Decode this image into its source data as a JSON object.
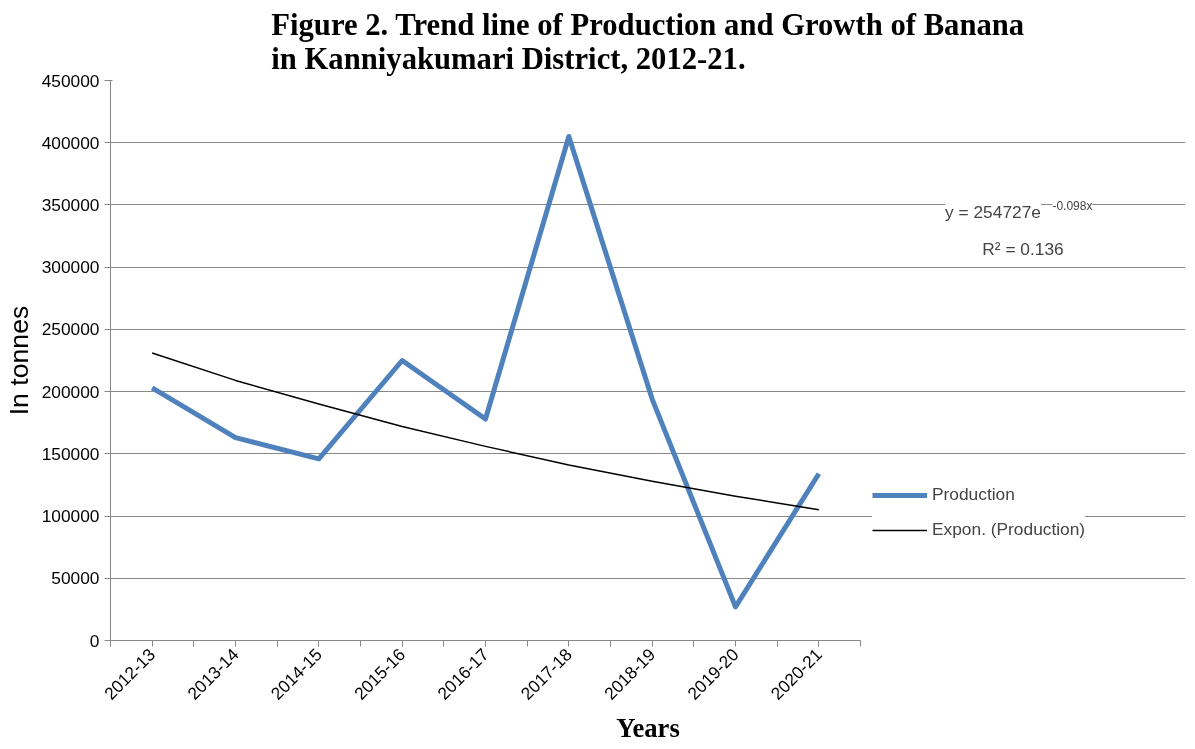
{
  "chart_data": {
    "type": "line",
    "title": "Figure 2. Trend line of Production and Growth of Banana\nin Kanniyakumari District, 2012-21.",
    "xlabel": "Years",
    "ylabel": "In tonnes",
    "categories": [
      "2012-13",
      "2013-14",
      "2014-15",
      "2015-16",
      "2016-17",
      "2017-18",
      "2018-19",
      "2019-20",
      "2020-21"
    ],
    "series": [
      {
        "name": "Production",
        "color": "#4f81bd",
        "values": [
          203000,
          163000,
          146000,
          225000,
          178000,
          405000,
          194000,
          27000,
          134000
        ]
      },
      {
        "name": "Expon. (Production)",
        "color": "#000000",
        "values": [
          231000,
          209000,
          190000,
          172000,
          156000,
          141000,
          128000,
          116000,
          105000
        ]
      }
    ],
    "ylim": [
      0,
      450000
    ],
    "yticks": [
      0,
      50000,
      100000,
      150000,
      200000,
      250000,
      300000,
      350000,
      400000,
      450000
    ],
    "grid": "y",
    "legend": "right",
    "marker": "none",
    "line_style": "solid",
    "annotations": [
      "y = 254727e$^{-0.098x}$",
      "R² = 0.136"
    ]
  }
}
